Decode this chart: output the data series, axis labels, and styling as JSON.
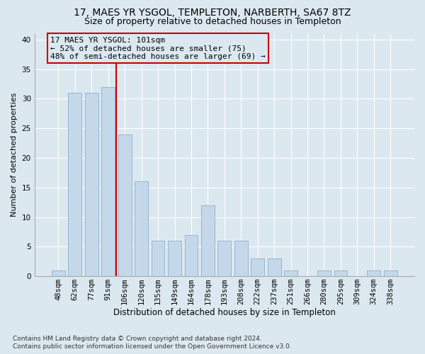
{
  "title": "17, MAES YR YSGOL, TEMPLETON, NARBERTH, SA67 8TZ",
  "subtitle": "Size of property relative to detached houses in Templeton",
  "xlabel": "Distribution of detached houses by size in Templeton",
  "ylabel": "Number of detached properties",
  "categories": [
    "48sqm",
    "62sqm",
    "77sqm",
    "91sqm",
    "106sqm",
    "120sqm",
    "135sqm",
    "149sqm",
    "164sqm",
    "178sqm",
    "193sqm",
    "208sqm",
    "222sqm",
    "237sqm",
    "251sqm",
    "266sqm",
    "280sqm",
    "295sqm",
    "309sqm",
    "324sqm",
    "338sqm"
  ],
  "values": [
    1,
    31,
    31,
    32,
    24,
    16,
    6,
    6,
    7,
    12,
    6,
    6,
    3,
    3,
    1,
    0,
    1,
    1,
    0,
    1,
    1
  ],
  "bar_color": "#c5d8ea",
  "bar_edgecolor": "#8ab0cc",
  "vline_color": "#cc0000",
  "vline_x": 3.5,
  "annotation_line1": "17 MAES YR YSGOL: 101sqm",
  "annotation_line2": "← 52% of detached houses are smaller (75)",
  "annotation_line3": "48% of semi-detached houses are larger (69) →",
  "annotation_box_edgecolor": "#cc0000",
  "ylim": [
    0,
    41
  ],
  "yticks": [
    0,
    5,
    10,
    15,
    20,
    25,
    30,
    35,
    40
  ],
  "background_color": "#dce8f0",
  "grid_color": "#ffffff",
  "footer_line1": "Contains HM Land Registry data © Crown copyright and database right 2024.",
  "footer_line2": "Contains public sector information licensed under the Open Government Licence v3.0.",
  "title_fontsize": 10,
  "subtitle_fontsize": 9,
  "xlabel_fontsize": 8.5,
  "ylabel_fontsize": 8,
  "tick_fontsize": 7.5,
  "annotation_fontsize": 8,
  "footer_fontsize": 6.5
}
